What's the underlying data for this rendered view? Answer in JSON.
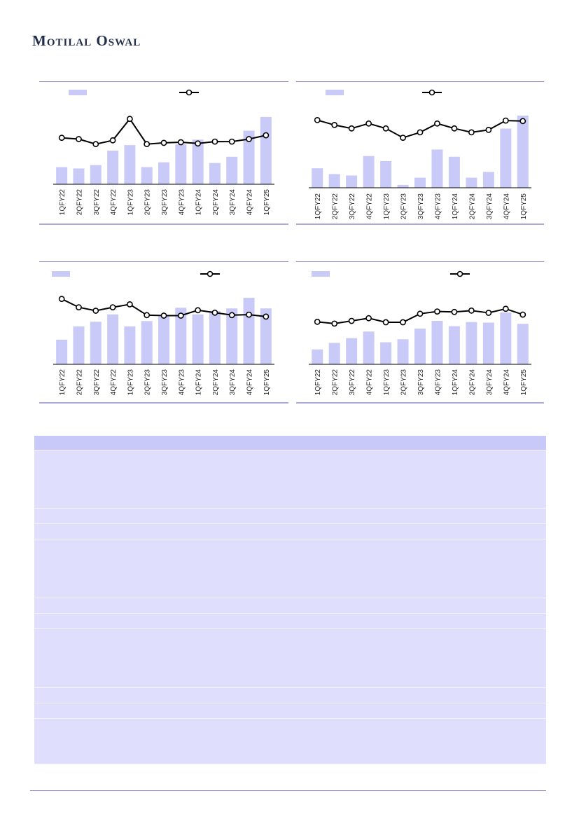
{
  "header": {
    "brand": "Motilal Oswal"
  },
  "colors": {
    "bar": "#cacaf8",
    "line": "#000000",
    "marker_fill": "#ffffff",
    "rule": "#8e8ecf",
    "table_bg": "#dfdffd",
    "table_header": "#c9c9f9"
  },
  "chart_data": [
    {
      "type": "bar+line",
      "categories": [
        "1QFY22",
        "2QFY22",
        "3QFY22",
        "4QFY22",
        "1QFY23",
        "2QFY23",
        "3QFY23",
        "4QFY23",
        "1QFY24",
        "2QFY24",
        "3QFY24",
        "4QFY24",
        "1QFY25"
      ],
      "series": [
        {
          "kind": "bar",
          "values": [
            25,
            23,
            28,
            49,
            57,
            25,
            32,
            58,
            65,
            31,
            40,
            78,
            98
          ]
        },
        {
          "kind": "line",
          "values": [
            67,
            65,
            57,
            63,
            97,
            57,
            59,
            60,
            58,
            61,
            61,
            65,
            71
          ]
        }
      ],
      "ylim": [
        0,
        100
      ]
    },
    {
      "type": "bar+line",
      "categories": [
        "1QFY22",
        "2QFY22",
        "3QFY22",
        "4QFY22",
        "1QFY23",
        "2QFY23",
        "3QFY23",
        "4QFY23",
        "1QFY24",
        "2QFY24",
        "3QFY24",
        "4QFY24",
        "1QFY25"
      ],
      "series": [
        {
          "kind": "bar",
          "values": [
            27,
            19,
            17,
            44,
            37,
            4,
            14,
            53,
            43,
            14,
            22,
            82,
            100
          ]
        },
        {
          "kind": "line",
          "values": [
            98,
            88,
            81,
            91,
            81,
            62,
            73,
            91,
            81,
            73,
            78,
            97,
            96
          ]
        }
      ],
      "ylim": [
        0,
        100
      ]
    },
    {
      "type": "bar+line",
      "categories": [
        "1QFY22",
        "2QFY22",
        "3QFY22",
        "4QFY22",
        "1QFY23",
        "2QFY23",
        "3QFY23",
        "4QFY23",
        "1QFY24",
        "2QFY24",
        "3QFY24",
        "4QFY24",
        "1QFY25"
      ],
      "series": [
        {
          "kind": "bar",
          "values": [
            37,
            57,
            64,
            75,
            57,
            65,
            72,
            85,
            75,
            80,
            84,
            100,
            84
          ]
        },
        {
          "kind": "line",
          "values": [
            99,
            82,
            75,
            82,
            88,
            66,
            65,
            65,
            76,
            71,
            66,
            67,
            63
          ]
        }
      ],
      "ylim": [
        0,
        100
      ]
    },
    {
      "type": "bar+line",
      "categories": [
        "1QFY22",
        "2QFY22",
        "3QFY22",
        "4QFY22",
        "1QFY23",
        "2QFY23",
        "3QFY23",
        "4QFY23",
        "1QFY24",
        "2QFY24",
        "3QFY24",
        "4QFY24",
        "1QFY25"
      ],
      "series": [
        {
          "kind": "bar",
          "values": [
            25,
            36,
            44,
            55,
            37,
            42,
            60,
            73,
            64,
            71,
            70,
            87,
            68
          ]
        },
        {
          "kind": "line",
          "values": [
            62,
            58,
            64,
            70,
            61,
            61,
            80,
            85,
            84,
            87,
            82,
            91,
            78
          ]
        }
      ],
      "ylim": [
        0,
        100
      ]
    }
  ],
  "table": {
    "row_count": 14
  }
}
